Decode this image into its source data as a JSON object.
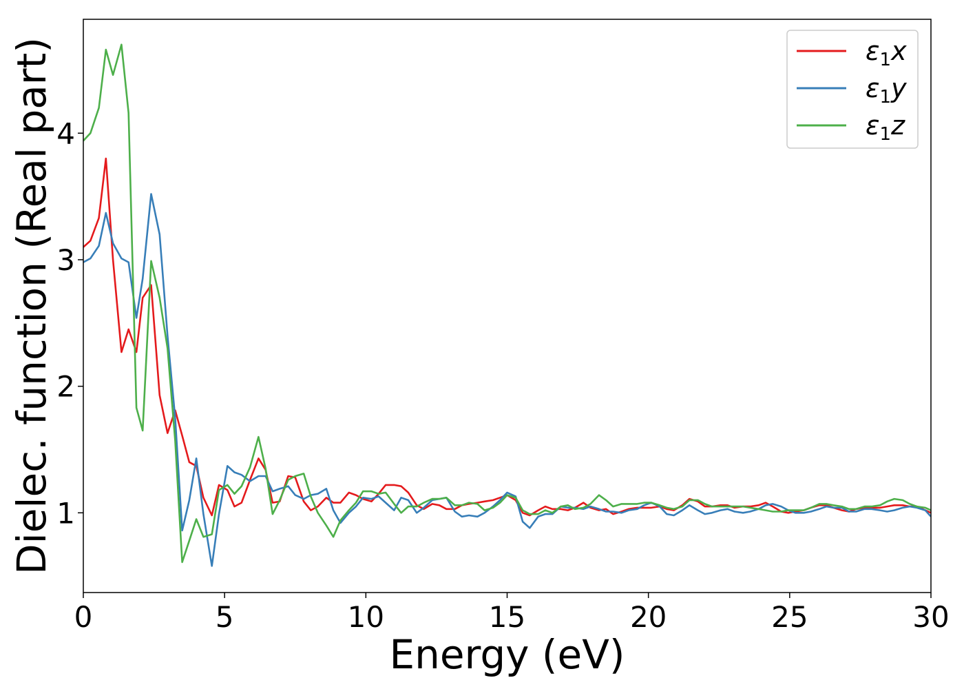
{
  "chart_data": {
    "type": "line",
    "xlabel": "Energy (eV)",
    "ylabel": "Dielec. function (Real part)",
    "xlim": [
      0,
      30
    ],
    "ylim": [
      0.37,
      4.9
    ],
    "xticks": [
      0,
      5,
      10,
      15,
      20,
      25,
      30
    ],
    "yticks": [
      1,
      2,
      3,
      4
    ],
    "grid": false,
    "legend_position": "top-right",
    "series": [
      {
        "name": "ε1x",
        "legend": {
          "symbol": "ε",
          "sub": "1",
          "var": "x"
        },
        "color": "#e41a1c",
        "x": [
          0,
          0.25,
          0.55,
          0.8,
          1.05,
          1.35,
          1.6,
          1.88,
          2.1,
          2.4,
          2.7,
          2.98,
          3.25,
          3.5,
          3.75,
          4.0,
          4.25,
          4.55,
          4.8,
          5.1,
          5.35,
          5.6,
          5.9,
          6.2,
          6.45,
          6.7,
          6.95,
          7.25,
          7.5,
          7.8,
          8.05,
          8.3,
          8.6,
          8.85,
          9.1,
          9.4,
          9.65,
          9.9,
          10.2,
          10.45,
          10.7,
          11.0,
          11.25,
          11.5,
          11.8,
          12.05,
          12.35,
          12.6,
          12.85,
          13.15,
          13.4,
          13.65,
          13.95,
          14.2,
          14.5,
          14.75,
          15.0,
          15.3,
          15.55,
          15.8,
          16.1,
          16.35,
          16.6,
          16.9,
          17.15,
          17.4,
          17.7,
          17.95,
          18.25,
          18.5,
          18.75,
          19.05,
          19.3,
          19.6,
          19.85,
          20.1,
          20.4,
          20.65,
          20.9,
          21.2,
          21.45,
          21.75,
          22.0,
          22.25,
          22.55,
          22.8,
          23.05,
          23.35,
          23.6,
          23.9,
          24.15,
          24.4,
          24.7,
          24.95,
          25.2,
          25.5,
          25.75,
          26.05,
          26.3,
          26.55,
          26.85,
          27.1,
          27.35,
          27.65,
          27.9,
          28.2,
          28.45,
          28.7,
          29.0,
          29.25,
          29.5,
          29.8,
          30.0
        ],
        "y": [
          3.1,
          3.15,
          3.33,
          3.8,
          3.0,
          2.27,
          2.45,
          2.27,
          2.7,
          2.8,
          1.93,
          1.63,
          1.81,
          1.61,
          1.4,
          1.37,
          1.12,
          0.98,
          1.22,
          1.18,
          1.05,
          1.08,
          1.26,
          1.43,
          1.34,
          1.08,
          1.09,
          1.29,
          1.28,
          1.09,
          1.02,
          1.05,
          1.12,
          1.08,
          1.08,
          1.16,
          1.14,
          1.11,
          1.09,
          1.15,
          1.22,
          1.22,
          1.21,
          1.16,
          1.06,
          1.03,
          1.07,
          1.06,
          1.03,
          1.03,
          1.06,
          1.07,
          1.08,
          1.09,
          1.1,
          1.12,
          1.14,
          1.1,
          1.0,
          0.98,
          1.02,
          1.05,
          1.03,
          1.03,
          1.02,
          1.04,
          1.08,
          1.04,
          1.02,
          1.03,
          0.99,
          1.01,
          1.03,
          1.04,
          1.04,
          1.04,
          1.05,
          1.03,
          1.02,
          1.06,
          1.11,
          1.09,
          1.05,
          1.05,
          1.06,
          1.06,
          1.04,
          1.05,
          1.05,
          1.06,
          1.08,
          1.05,
          1.01,
          1.0,
          1.01,
          1.02,
          1.04,
          1.06,
          1.06,
          1.04,
          1.02,
          1.01,
          1.03,
          1.04,
          1.04,
          1.04,
          1.05,
          1.06,
          1.06,
          1.05,
          1.05,
          1.02,
          1.0
        ]
      },
      {
        "name": "ε1y",
        "legend": {
          "symbol": "ε",
          "sub": "1",
          "var": "y"
        },
        "color": "#377eb8",
        "x": [
          0,
          0.25,
          0.55,
          0.8,
          1.05,
          1.35,
          1.6,
          1.88,
          2.1,
          2.4,
          2.7,
          2.98,
          3.25,
          3.5,
          3.75,
          4.0,
          4.25,
          4.55,
          4.8,
          5.1,
          5.35,
          5.6,
          5.9,
          6.2,
          6.45,
          6.7,
          6.95,
          7.25,
          7.5,
          7.8,
          8.05,
          8.3,
          8.6,
          8.85,
          9.1,
          9.4,
          9.65,
          9.9,
          10.2,
          10.45,
          10.7,
          11.0,
          11.25,
          11.5,
          11.8,
          12.05,
          12.35,
          12.6,
          12.85,
          13.15,
          13.4,
          13.65,
          13.95,
          14.2,
          14.5,
          14.75,
          15.0,
          15.3,
          15.55,
          15.8,
          16.1,
          16.35,
          16.6,
          16.9,
          17.15,
          17.4,
          17.7,
          17.95,
          18.25,
          18.5,
          18.75,
          19.05,
          19.3,
          19.6,
          19.85,
          20.1,
          20.4,
          20.65,
          20.9,
          21.2,
          21.45,
          21.75,
          22.0,
          22.25,
          22.55,
          22.8,
          23.05,
          23.35,
          23.6,
          23.9,
          24.15,
          24.4,
          24.7,
          24.95,
          25.2,
          25.5,
          25.75,
          26.05,
          26.3,
          26.55,
          26.85,
          27.1,
          27.35,
          27.65,
          27.9,
          28.2,
          28.45,
          28.7,
          29.0,
          29.25,
          29.5,
          29.8,
          30.0
        ],
        "y": [
          2.98,
          3.01,
          3.11,
          3.37,
          3.13,
          3.01,
          2.98,
          2.54,
          2.85,
          3.52,
          3.2,
          2.4,
          1.75,
          0.86,
          1.1,
          1.43,
          0.99,
          0.58,
          0.99,
          1.37,
          1.32,
          1.3,
          1.25,
          1.29,
          1.29,
          1.17,
          1.19,
          1.21,
          1.14,
          1.11,
          1.14,
          1.15,
          1.19,
          1.02,
          0.92,
          1.0,
          1.05,
          1.12,
          1.11,
          1.13,
          1.08,
          1.02,
          1.12,
          1.1,
          1.0,
          1.04,
          1.1,
          1.11,
          1.12,
          1.01,
          0.97,
          0.98,
          0.97,
          1.0,
          1.05,
          1.1,
          1.16,
          1.13,
          0.93,
          0.88,
          0.97,
          0.99,
          0.99,
          1.05,
          1.04,
          1.04,
          1.03,
          1.05,
          1.03,
          1.01,
          1.01,
          1.0,
          1.02,
          1.03,
          1.06,
          1.08,
          1.05,
          0.99,
          0.98,
          1.02,
          1.06,
          1.02,
          0.99,
          1.0,
          1.02,
          1.03,
          1.01,
          1.0,
          1.01,
          1.03,
          1.06,
          1.07,
          1.05,
          1.02,
          1.0,
          1.0,
          1.01,
          1.03,
          1.05,
          1.04,
          1.04,
          1.01,
          1.01,
          1.03,
          1.03,
          1.02,
          1.01,
          1.02,
          1.04,
          1.05,
          1.04,
          1.02,
          0.97
        ]
      },
      {
        "name": "ε1z",
        "legend": {
          "symbol": "ε",
          "sub": "1",
          "var": "z"
        },
        "color": "#4daf4a",
        "x": [
          0,
          0.25,
          0.55,
          0.8,
          1.05,
          1.35,
          1.6,
          1.88,
          2.1,
          2.4,
          2.7,
          2.98,
          3.25,
          3.5,
          3.75,
          4.0,
          4.25,
          4.55,
          4.8,
          5.1,
          5.35,
          5.6,
          5.9,
          6.2,
          6.45,
          6.7,
          6.95,
          7.25,
          7.5,
          7.8,
          8.05,
          8.3,
          8.6,
          8.85,
          9.1,
          9.4,
          9.65,
          9.9,
          10.2,
          10.45,
          10.7,
          11.0,
          11.25,
          11.5,
          11.8,
          12.05,
          12.35,
          12.6,
          12.85,
          13.15,
          13.4,
          13.65,
          13.95,
          14.2,
          14.5,
          14.75,
          15.0,
          15.3,
          15.55,
          15.8,
          16.1,
          16.35,
          16.6,
          16.9,
          17.15,
          17.4,
          17.7,
          17.95,
          18.25,
          18.5,
          18.75,
          19.05,
          19.3,
          19.6,
          19.85,
          20.1,
          20.4,
          20.65,
          20.9,
          21.2,
          21.45,
          21.75,
          22.0,
          22.25,
          22.55,
          22.8,
          23.05,
          23.35,
          23.6,
          23.9,
          24.15,
          24.4,
          24.7,
          24.95,
          25.2,
          25.5,
          25.75,
          26.05,
          26.3,
          26.55,
          26.85,
          27.1,
          27.35,
          27.65,
          27.9,
          28.2,
          28.45,
          28.7,
          29.0,
          29.25,
          29.5,
          29.8,
          30.0
        ],
        "y": [
          3.94,
          4.0,
          4.2,
          4.66,
          4.46,
          4.7,
          4.16,
          1.83,
          1.65,
          2.99,
          2.7,
          2.3,
          1.57,
          0.61,
          0.78,
          0.95,
          0.81,
          0.83,
          1.18,
          1.22,
          1.15,
          1.21,
          1.36,
          1.6,
          1.35,
          0.99,
          1.1,
          1.26,
          1.29,
          1.31,
          1.13,
          1.0,
          0.9,
          0.81,
          0.94,
          1.02,
          1.08,
          1.17,
          1.17,
          1.15,
          1.16,
          1.07,
          1.0,
          1.05,
          1.05,
          1.08,
          1.11,
          1.11,
          1.12,
          1.06,
          1.06,
          1.08,
          1.07,
          1.02,
          1.04,
          1.08,
          1.14,
          1.12,
          1.02,
          0.99,
          0.99,
          1.02,
          1.0,
          1.05,
          1.06,
          1.03,
          1.04,
          1.07,
          1.14,
          1.1,
          1.05,
          1.07,
          1.07,
          1.07,
          1.08,
          1.08,
          1.06,
          1.04,
          1.03,
          1.05,
          1.1,
          1.1,
          1.07,
          1.05,
          1.05,
          1.05,
          1.05,
          1.05,
          1.04,
          1.03,
          1.02,
          1.01,
          1.01,
          1.02,
          1.02,
          1.02,
          1.04,
          1.07,
          1.07,
          1.06,
          1.05,
          1.03,
          1.03,
          1.05,
          1.05,
          1.06,
          1.09,
          1.11,
          1.1,
          1.07,
          1.05,
          1.04,
          1.02
        ]
      }
    ]
  }
}
